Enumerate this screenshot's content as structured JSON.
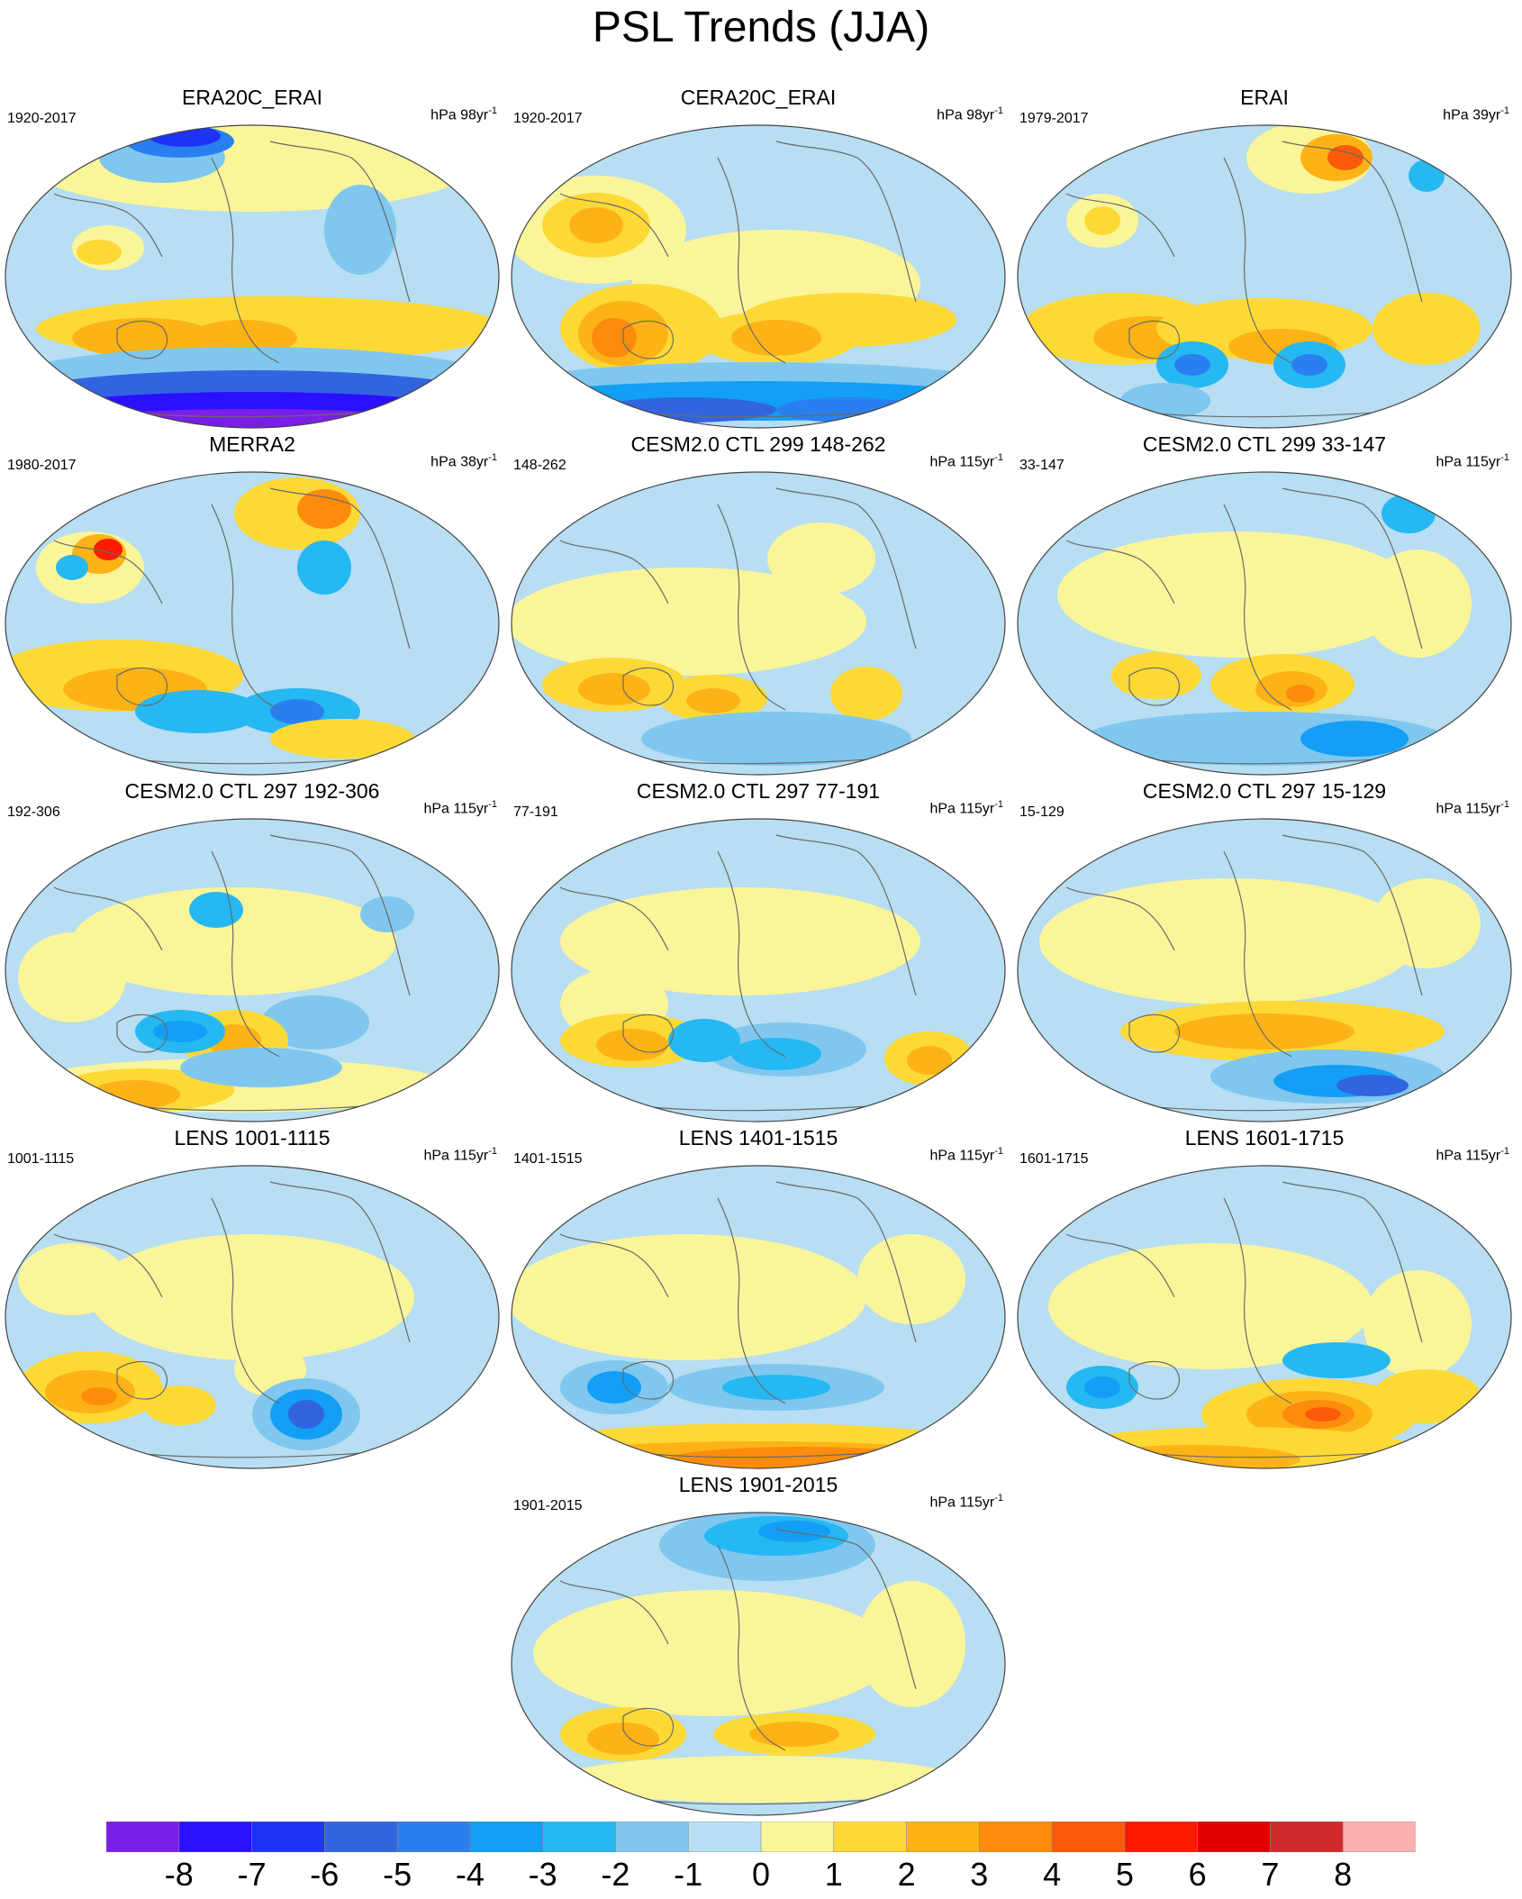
{
  "title": "PSL Trends (JJA)",
  "panels": [
    {
      "title": "ERA20C_ERAI",
      "period": "1920-2017",
      "units": "hPa 98yr",
      "units_exp": "-1",
      "pattern": "era20c"
    },
    {
      "title": "CERA20C_ERAI",
      "period": "1920-2017",
      "units": "hPa 98yr",
      "units_exp": "-1",
      "pattern": "cera20c"
    },
    {
      "title": "ERAI",
      "period": "1979-2017",
      "units": "hPa 39yr",
      "units_exp": "-1",
      "pattern": "erai"
    },
    {
      "title": "MERRA2",
      "period": "1980-2017",
      "units": "hPa 38yr",
      "units_exp": "-1",
      "pattern": "merra2"
    },
    {
      "title": "CESM2.0 CTL 299 148-262",
      "period": "148-262",
      "units": "hPa 115yr",
      "units_exp": "-1",
      "pattern": "ctl_a"
    },
    {
      "title": "CESM2.0 CTL 299 33-147",
      "period": "33-147",
      "units": "hPa 115yr",
      "units_exp": "-1",
      "pattern": "ctl_b"
    },
    {
      "title": "CESM2.0 CTL 297 192-306",
      "period": "192-306",
      "units": "hPa 115yr",
      "units_exp": "-1",
      "pattern": "ctl_c"
    },
    {
      "title": "CESM2.0 CTL 297 77-191",
      "period": "77-191",
      "units": "hPa 115yr",
      "units_exp": "-1",
      "pattern": "ctl_d"
    },
    {
      "title": "CESM2.0 CTL 297 15-129",
      "period": "15-129",
      "units": "hPa 115yr",
      "units_exp": "-1",
      "pattern": "ctl_e"
    },
    {
      "title": "LENS 1001-1115",
      "period": "1001-1115",
      "units": "hPa 115yr",
      "units_exp": "-1",
      "pattern": "lens_a"
    },
    {
      "title": "LENS 1401-1515",
      "period": "1401-1515",
      "units": "hPa 115yr",
      "units_exp": "-1",
      "pattern": "lens_b"
    },
    {
      "title": "LENS 1601-1715",
      "period": "1601-1715",
      "units": "hPa 115yr",
      "units_exp": "-1",
      "pattern": "lens_c"
    },
    {
      "title": "LENS 1901-2015",
      "period": "1901-2015",
      "units": "hPa 115yr",
      "units_exp": "-1",
      "pattern": "lens_d"
    }
  ],
  "colorbar": {
    "labels": [
      "-8",
      "-7",
      "-6",
      "-5",
      "-4",
      "-3",
      "-2",
      "-1",
      "0",
      "1",
      "2",
      "3",
      "4",
      "5",
      "6",
      "7",
      "8"
    ],
    "colors": [
      "#7a1ee8",
      "#2b10ff",
      "#1f33f5",
      "#3364e0",
      "#2a7ff0",
      "#129ff5",
      "#26b8f2",
      "#7fc7ee",
      "#b7def2",
      "#fbf59a",
      "#fdd935",
      "#fdb316",
      "#fd8c0c",
      "#fd5a0a",
      "#ff1a00",
      "#e00000",
      "#d22a2a",
      "#fdb0b0"
    ]
  }
}
